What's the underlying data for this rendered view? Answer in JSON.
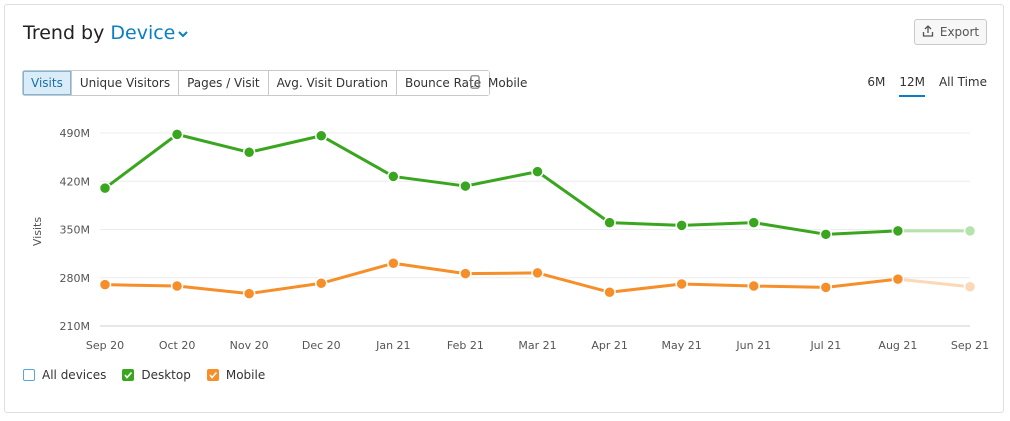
{
  "header": {
    "title_prefix": "Trend by",
    "title_dimension": "Device",
    "export_label": "Export"
  },
  "metric_tabs": [
    {
      "label": "Visits",
      "active": true
    },
    {
      "label": "Unique Visitors",
      "active": false
    },
    {
      "label": "Pages / Visit",
      "active": false
    },
    {
      "label": "Avg. Visit Duration",
      "active": false
    },
    {
      "label": "Bounce Rate",
      "active": false
    }
  ],
  "device_toggle": {
    "label": "Mobile"
  },
  "ranges": [
    {
      "label": "6M",
      "active": false
    },
    {
      "label": "12M",
      "active": true
    },
    {
      "label": "All Time",
      "active": false
    }
  ],
  "legend": [
    {
      "label": "All devices",
      "checked": false,
      "color": "#5aa7d6"
    },
    {
      "label": "Desktop",
      "checked": true,
      "color": "#3aa61f"
    },
    {
      "label": "Mobile",
      "checked": true,
      "color": "#f68e2a"
    }
  ],
  "chart_data": {
    "type": "line",
    "ylabel": "Visits",
    "xlabel": "",
    "title": "",
    "categories": [
      "Sep 20",
      "Oct 20",
      "Nov 20",
      "Dec 20",
      "Jan 21",
      "Feb 21",
      "Mar 21",
      "Apr 21",
      "May 21",
      "Jun 21",
      "Jul 21",
      "Aug 21",
      "Sep 21"
    ],
    "yticks": [
      "210M",
      "280M",
      "350M",
      "420M",
      "490M"
    ],
    "ylim": [
      210,
      490
    ],
    "grid": true,
    "series": [
      {
        "name": "Desktop",
        "color": "#3aa61f",
        "faded_color": "#b6e3ad",
        "values": [
          410,
          488,
          462,
          486,
          427,
          413,
          434,
          360,
          356,
          360,
          343,
          348,
          348
        ]
      },
      {
        "name": "Mobile",
        "color": "#f68e2a",
        "faded_color": "#fbd8b6",
        "values": [
          270,
          268,
          257,
          272,
          301,
          286,
          287,
          259,
          271,
          268,
          266,
          278,
          267
        ]
      }
    ],
    "faded_last_point": true
  }
}
